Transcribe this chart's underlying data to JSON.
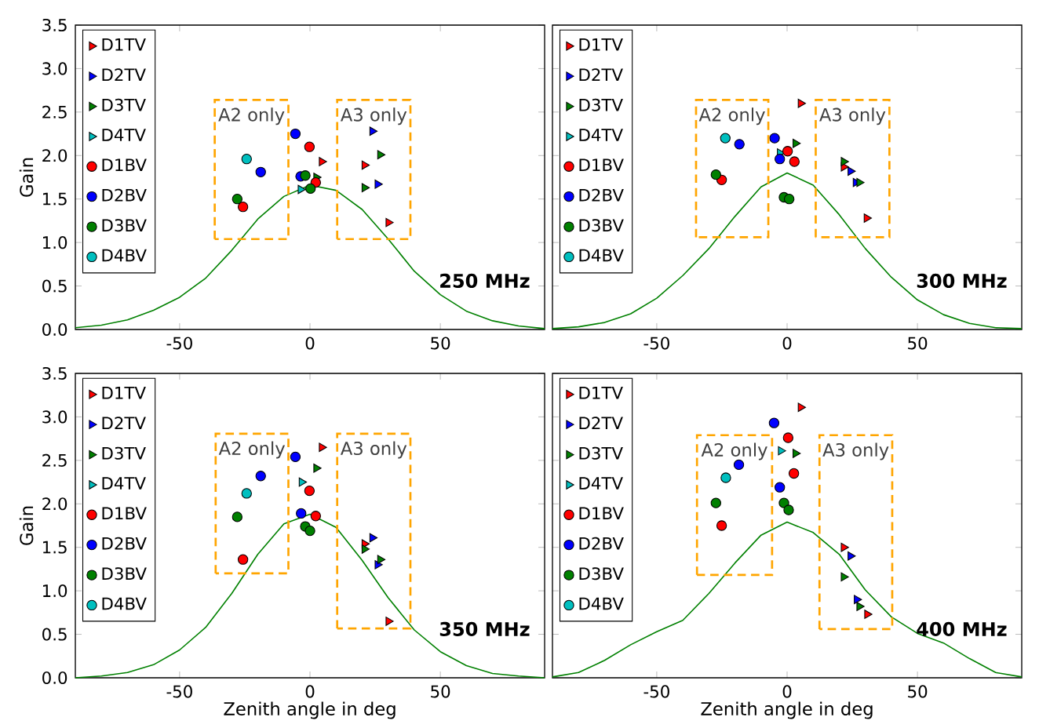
{
  "chart_data": [
    {
      "type": "scatter",
      "ylabel": "Gain",
      "xlim": [
        -90,
        90
      ],
      "ylim": [
        0,
        3.5
      ],
      "xticks": [
        -50,
        0,
        50
      ],
      "yticks": [
        {
          "value": 0,
          "label": "0.0"
        },
        {
          "value": 0.5,
          "label": "0.5"
        },
        {
          "value": 1,
          "label": "1.0"
        },
        {
          "value": 1.5,
          "label": "1.5"
        },
        {
          "value": 2,
          "label": "2.0"
        },
        {
          "value": 2.5,
          "label": "2.5"
        },
        {
          "value": 3,
          "label": "3.0"
        },
        {
          "value": 3.5,
          "label": "3.5"
        }
      ],
      "legend": "top left",
      "annotations": [
        "A2 only",
        "A3 only",
        "250 MHz"
      ],
      "series": [
        {
          "name": "D1TV",
          "color": "#ff0000",
          "marker": "triangle",
          "x": [
            4.5,
            20.9,
            30.1
          ],
          "values": [
            1.93,
            1.89,
            1.23
          ]
        },
        {
          "name": "D2TV",
          "color": "#0000ff",
          "marker": "triangle",
          "x": [
            23.9,
            25.9
          ],
          "values": [
            2.28,
            1.67
          ]
        },
        {
          "name": "D3TV",
          "color": "#008000",
          "marker": "triangle",
          "x": [
            2.4,
            20.9,
            26.9
          ],
          "values": [
            1.75,
            1.63,
            2.01
          ]
        },
        {
          "name": "D4TV",
          "color": "#00bfbf",
          "marker": "triangle",
          "x": [
            -3.6
          ],
          "values": [
            1.61
          ]
        },
        {
          "name": "D1BV",
          "color": "#ff0000",
          "marker": "circle",
          "x": [
            -25.7,
            -0.2,
            2.2
          ],
          "values": [
            1.41,
            2.1,
            1.69
          ]
        },
        {
          "name": "D2BV",
          "color": "#0000ff",
          "marker": "circle",
          "x": [
            -18.9,
            -5.6,
            -3.6
          ],
          "values": [
            1.81,
            2.25,
            1.76
          ]
        },
        {
          "name": "D3BV",
          "color": "#008000",
          "marker": "circle",
          "x": [
            -27.9,
            -1.8,
            0.2
          ],
          "values": [
            1.5,
            1.77,
            1.62
          ]
        },
        {
          "name": "D4BV",
          "color": "#00bfbf",
          "marker": "circle",
          "x": [
            -24.3
          ],
          "values": [
            1.96
          ]
        },
        {
          "type": "line",
          "color": "#008000",
          "marker": "none",
          "x": [
            -90,
            -80,
            -70,
            -60,
            -50,
            -40,
            -30,
            -20,
            -10,
            0,
            10,
            20,
            30,
            40,
            50,
            60,
            70,
            80,
            90
          ],
          "values": [
            0.02,
            0.05,
            0.11,
            0.22,
            0.37,
            0.59,
            0.91,
            1.27,
            1.53,
            1.66,
            1.6,
            1.38,
            1.04,
            0.67,
            0.4,
            0.21,
            0.1,
            0.04,
            0.01
          ]
        }
      ]
    },
    {
      "type": "scatter",
      "tick_labels": "x",
      "xlim": [
        -90,
        90
      ],
      "ylim": [
        0,
        3.5
      ],
      "xticks": [
        -50,
        0,
        50
      ],
      "yticks": [
        0,
        0.5,
        1,
        1.5,
        2,
        2.5,
        3,
        3.5
      ],
      "legend": "top left",
      "annotations": [
        "A2 only",
        "A3 only",
        "300 MHz"
      ],
      "series": [
        {
          "name": "D1TV",
          "color": "#ff0000",
          "marker": "triangle",
          "x": [
            5.2,
            21.7,
            30.5
          ],
          "values": [
            2.6,
            1.87,
            1.28
          ]
        },
        {
          "name": "D2TV",
          "color": "#0000ff",
          "marker": "triangle",
          "x": [
            24.3,
            26.3
          ],
          "values": [
            1.82,
            1.69
          ]
        },
        {
          "name": "D3TV",
          "color": "#008000",
          "marker": "triangle",
          "x": [
            3.2,
            21.7,
            27.7
          ],
          "values": [
            2.14,
            1.93,
            1.69
          ]
        },
        {
          "name": "D4TV",
          "color": "#00bfbf",
          "marker": "triangle",
          "x": [
            -2.8
          ],
          "values": [
            2.03
          ]
        },
        {
          "name": "D1BV",
          "color": "#ff0000",
          "marker": "circle",
          "x": [
            -25.1,
            0.2,
            2.8
          ],
          "values": [
            1.72,
            2.05,
            1.93
          ]
        },
        {
          "name": "D2BV",
          "color": "#0000ff",
          "marker": "circle",
          "x": [
            -18.3,
            -4.8,
            -2.8
          ],
          "values": [
            2.13,
            2.2,
            1.96
          ]
        },
        {
          "name": "D3BV",
          "color": "#008000",
          "marker": "circle",
          "x": [
            -27.3,
            -1.2,
            0.8
          ],
          "values": [
            1.78,
            1.52,
            1.5
          ]
        },
        {
          "name": "D4BV",
          "color": "#00bfbf",
          "marker": "circle",
          "x": [
            -23.7
          ],
          "values": [
            2.2
          ]
        },
        {
          "type": "line",
          "color": "#008000",
          "marker": "none",
          "x": [
            -90,
            -80,
            -70,
            -60,
            -50,
            -40,
            -30,
            -20,
            -10,
            0,
            10,
            20,
            30,
            40,
            50,
            60,
            70,
            80,
            90
          ],
          "values": [
            0.01,
            0.03,
            0.08,
            0.18,
            0.36,
            0.62,
            0.93,
            1.3,
            1.64,
            1.8,
            1.66,
            1.32,
            0.93,
            0.6,
            0.34,
            0.17,
            0.07,
            0.02,
            0.01
          ]
        }
      ]
    },
    {
      "type": "scatter",
      "xlabel": "Zenith angle in deg",
      "ylabel": "Gain",
      "xlim": [
        -90,
        90
      ],
      "ylim": [
        0,
        3.5
      ],
      "xticks": [
        -50,
        0,
        50
      ],
      "yticks": [
        {
          "value": 0,
          "label": "0.0"
        },
        {
          "value": 0.5,
          "label": "0.5"
        },
        {
          "value": 1,
          "label": "1.0"
        },
        {
          "value": 1.5,
          "label": "1.5"
        },
        {
          "value": 2,
          "label": "2.0"
        },
        {
          "value": 2.5,
          "label": "2.5"
        },
        {
          "value": 3,
          "label": "3.0"
        },
        {
          "value": 3.5,
          "label": "3.5"
        }
      ],
      "legend": "top left",
      "annotations": [
        "A2 only",
        "A3 only",
        "350 MHz"
      ],
      "series": [
        {
          "name": "D1TV",
          "color": "#ff0000",
          "marker": "triangle",
          "x": [
            4.5,
            20.9,
            30.1
          ],
          "values": [
            2.65,
            1.54,
            0.65
          ]
        },
        {
          "name": "D2TV",
          "color": "#0000ff",
          "marker": "triangle",
          "x": [
            23.9,
            25.9
          ],
          "values": [
            1.61,
            1.3
          ]
        },
        {
          "name": "D3TV",
          "color": "#008000",
          "marker": "triangle",
          "x": [
            2.4,
            20.9,
            26.9
          ],
          "values": [
            2.41,
            1.48,
            1.36
          ]
        },
        {
          "name": "D4TV",
          "color": "#00bfbf",
          "marker": "triangle",
          "x": [
            -3.2
          ],
          "values": [
            2.25
          ]
        },
        {
          "name": "D1BV",
          "color": "#ff0000",
          "marker": "circle",
          "x": [
            -25.7,
            -0.2,
            2.2
          ],
          "values": [
            1.36,
            2.15,
            1.86
          ]
        },
        {
          "name": "D2BV",
          "color": "#0000ff",
          "marker": "circle",
          "x": [
            -18.9,
            -5.6,
            -3.4
          ],
          "values": [
            2.32,
            2.54,
            1.89
          ]
        },
        {
          "name": "D3BV",
          "color": "#008000",
          "marker": "circle",
          "x": [
            -27.9,
            -1.8,
            0.0
          ],
          "values": [
            1.85,
            1.74,
            1.69
          ]
        },
        {
          "name": "D4BV",
          "color": "#00bfbf",
          "marker": "circle",
          "x": [
            -24.3
          ],
          "values": [
            2.12
          ]
        },
        {
          "type": "line",
          "color": "#008000",
          "marker": "none",
          "x": [
            -90,
            -80,
            -70,
            -60,
            -50,
            -40,
            -30,
            -20,
            -10,
            0,
            10,
            20,
            30,
            40,
            50,
            60,
            70,
            80,
            90
          ],
          "values": [
            0.0,
            0.02,
            0.06,
            0.15,
            0.32,
            0.58,
            0.97,
            1.42,
            1.77,
            1.88,
            1.73,
            1.35,
            0.92,
            0.55,
            0.3,
            0.14,
            0.05,
            0.02,
            0.0
          ]
        }
      ]
    },
    {
      "type": "scatter",
      "xlabel": "Zenith angle in deg",
      "tick_labels": "x",
      "xlim": [
        -90,
        90
      ],
      "ylim": [
        0,
        3.5
      ],
      "xticks": [
        -50,
        0,
        50
      ],
      "yticks": [
        0,
        0.5,
        1,
        1.5,
        2,
        2.5,
        3,
        3.5
      ],
      "legend": "top left",
      "annotations": [
        "A2 only",
        "A3 only",
        "400 MHz"
      ],
      "series": [
        {
          "name": "D1TV",
          "color": "#ff0000",
          "marker": "triangle",
          "x": [
            5.2,
            21.7,
            30.7
          ],
          "values": [
            3.11,
            1.5,
            0.73
          ]
        },
        {
          "name": "D2TV",
          "color": "#0000ff",
          "marker": "triangle",
          "x": [
            24.3,
            26.7
          ],
          "values": [
            1.4,
            0.9
          ]
        },
        {
          "name": "D3TV",
          "color": "#008000",
          "marker": "triangle",
          "x": [
            3.2,
            21.7,
            27.7
          ],
          "values": [
            2.58,
            1.16,
            0.82
          ]
        },
        {
          "name": "D4TV",
          "color": "#00bfbf",
          "marker": "triangle",
          "x": [
            -2.4
          ],
          "values": [
            2.61
          ]
        },
        {
          "name": "D1BV",
          "color": "#ff0000",
          "marker": "circle",
          "x": [
            -25.1,
            0.4,
            2.6
          ],
          "values": [
            1.75,
            2.76,
            2.35
          ]
        },
        {
          "name": "D2BV",
          "color": "#0000ff",
          "marker": "circle",
          "x": [
            -18.5,
            -5.0,
            -2.8
          ],
          "values": [
            2.45,
            2.93,
            2.19
          ]
        },
        {
          "name": "D3BV",
          "color": "#008000",
          "marker": "circle",
          "x": [
            -27.3,
            -1.2,
            0.6
          ],
          "values": [
            2.01,
            2.01,
            1.93
          ]
        },
        {
          "name": "D4BV",
          "color": "#00bfbf",
          "marker": "circle",
          "x": [
            -23.5
          ],
          "values": [
            2.3
          ]
        },
        {
          "type": "line",
          "color": "#008000",
          "marker": "none",
          "x": [
            -90,
            -80,
            -70,
            -60,
            -50,
            -40,
            -30,
            -20,
            -10,
            0,
            10,
            20,
            30,
            40,
            50,
            60,
            70,
            80,
            90
          ],
          "values": [
            0.01,
            0.06,
            0.2,
            0.38,
            0.53,
            0.66,
            0.97,
            1.32,
            1.64,
            1.79,
            1.67,
            1.42,
            1.01,
            0.7,
            0.51,
            0.4,
            0.22,
            0.06,
            0.01
          ]
        }
      ]
    }
  ]
}
